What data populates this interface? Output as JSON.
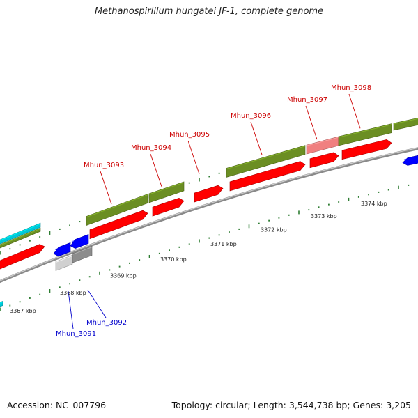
{
  "title": "Methanospirillum hungatei JF-1, complete genome",
  "footer": {
    "accession": "Accession: NC_007796",
    "summary": "Topology: circular; Length: 3,544,738 bp; Genes: 3,205"
  },
  "colors": {
    "forward_gene": "#ff0000",
    "reverse_gene": "#0000ff",
    "forward_label": "#cc0000",
    "reverse_label": "#0000cc",
    "cds_bar": "#6b8e23",
    "highlight_bar": "#f08080",
    "grey_bar": "#8c8c8c",
    "cyan_bar": "#00c8d8",
    "ticks": "#2e7d32",
    "backbone": "#8a8a8a"
  },
  "scale_labels": [
    "3367 kbp",
    "3368 kbp",
    "3369 kbp",
    "3370 kbp",
    "3371 kbp",
    "3372 kbp",
    "3373 kbp",
    "3374 kbp"
  ],
  "genes_forward": [
    {
      "name": "Mhun_3093"
    },
    {
      "name": "Mhun_3094"
    },
    {
      "name": "Mhun_3095"
    },
    {
      "name": "Mhun_3096"
    },
    {
      "name": "Mhun_3097"
    },
    {
      "name": "Mhun_3098"
    }
  ],
  "genes_reverse": [
    {
      "name": "Mhun_3091"
    },
    {
      "name": "Mhun_3092"
    }
  ]
}
